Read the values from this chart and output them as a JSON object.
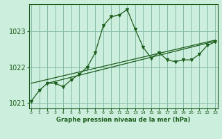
{
  "title": "Graphe pression niveau de la mer (hPa)",
  "bg_color": "#cceedd",
  "grid_color": "#88bbaa",
  "line_color": "#1a5c1a",
  "x_values": [
    0,
    1,
    2,
    3,
    4,
    5,
    6,
    7,
    8,
    9,
    10,
    11,
    12,
    13,
    14,
    15,
    16,
    17,
    18,
    19,
    20,
    21,
    22,
    23
  ],
  "pressure_main": [
    1021.05,
    1021.35,
    1021.55,
    1021.55,
    1021.45,
    1021.65,
    1021.8,
    1022.0,
    1022.4,
    1023.15,
    1023.4,
    1023.45,
    1023.6,
    1023.05,
    1022.55,
    1022.25,
    1022.4,
    1022.2,
    1022.15,
    1022.2,
    1022.2,
    1022.35,
    1022.6,
    1022.7
  ],
  "trend1_x": [
    2,
    23
  ],
  "trend1_y": [
    1021.55,
    1022.72
  ],
  "trend2_x": [
    0,
    23
  ],
  "trend2_y": [
    1021.55,
    1022.75
  ],
  "ylim": [
    1020.85,
    1023.75
  ],
  "yticks": [
    1021,
    1022,
    1023
  ],
  "xlim": [
    -0.3,
    23.3
  ]
}
